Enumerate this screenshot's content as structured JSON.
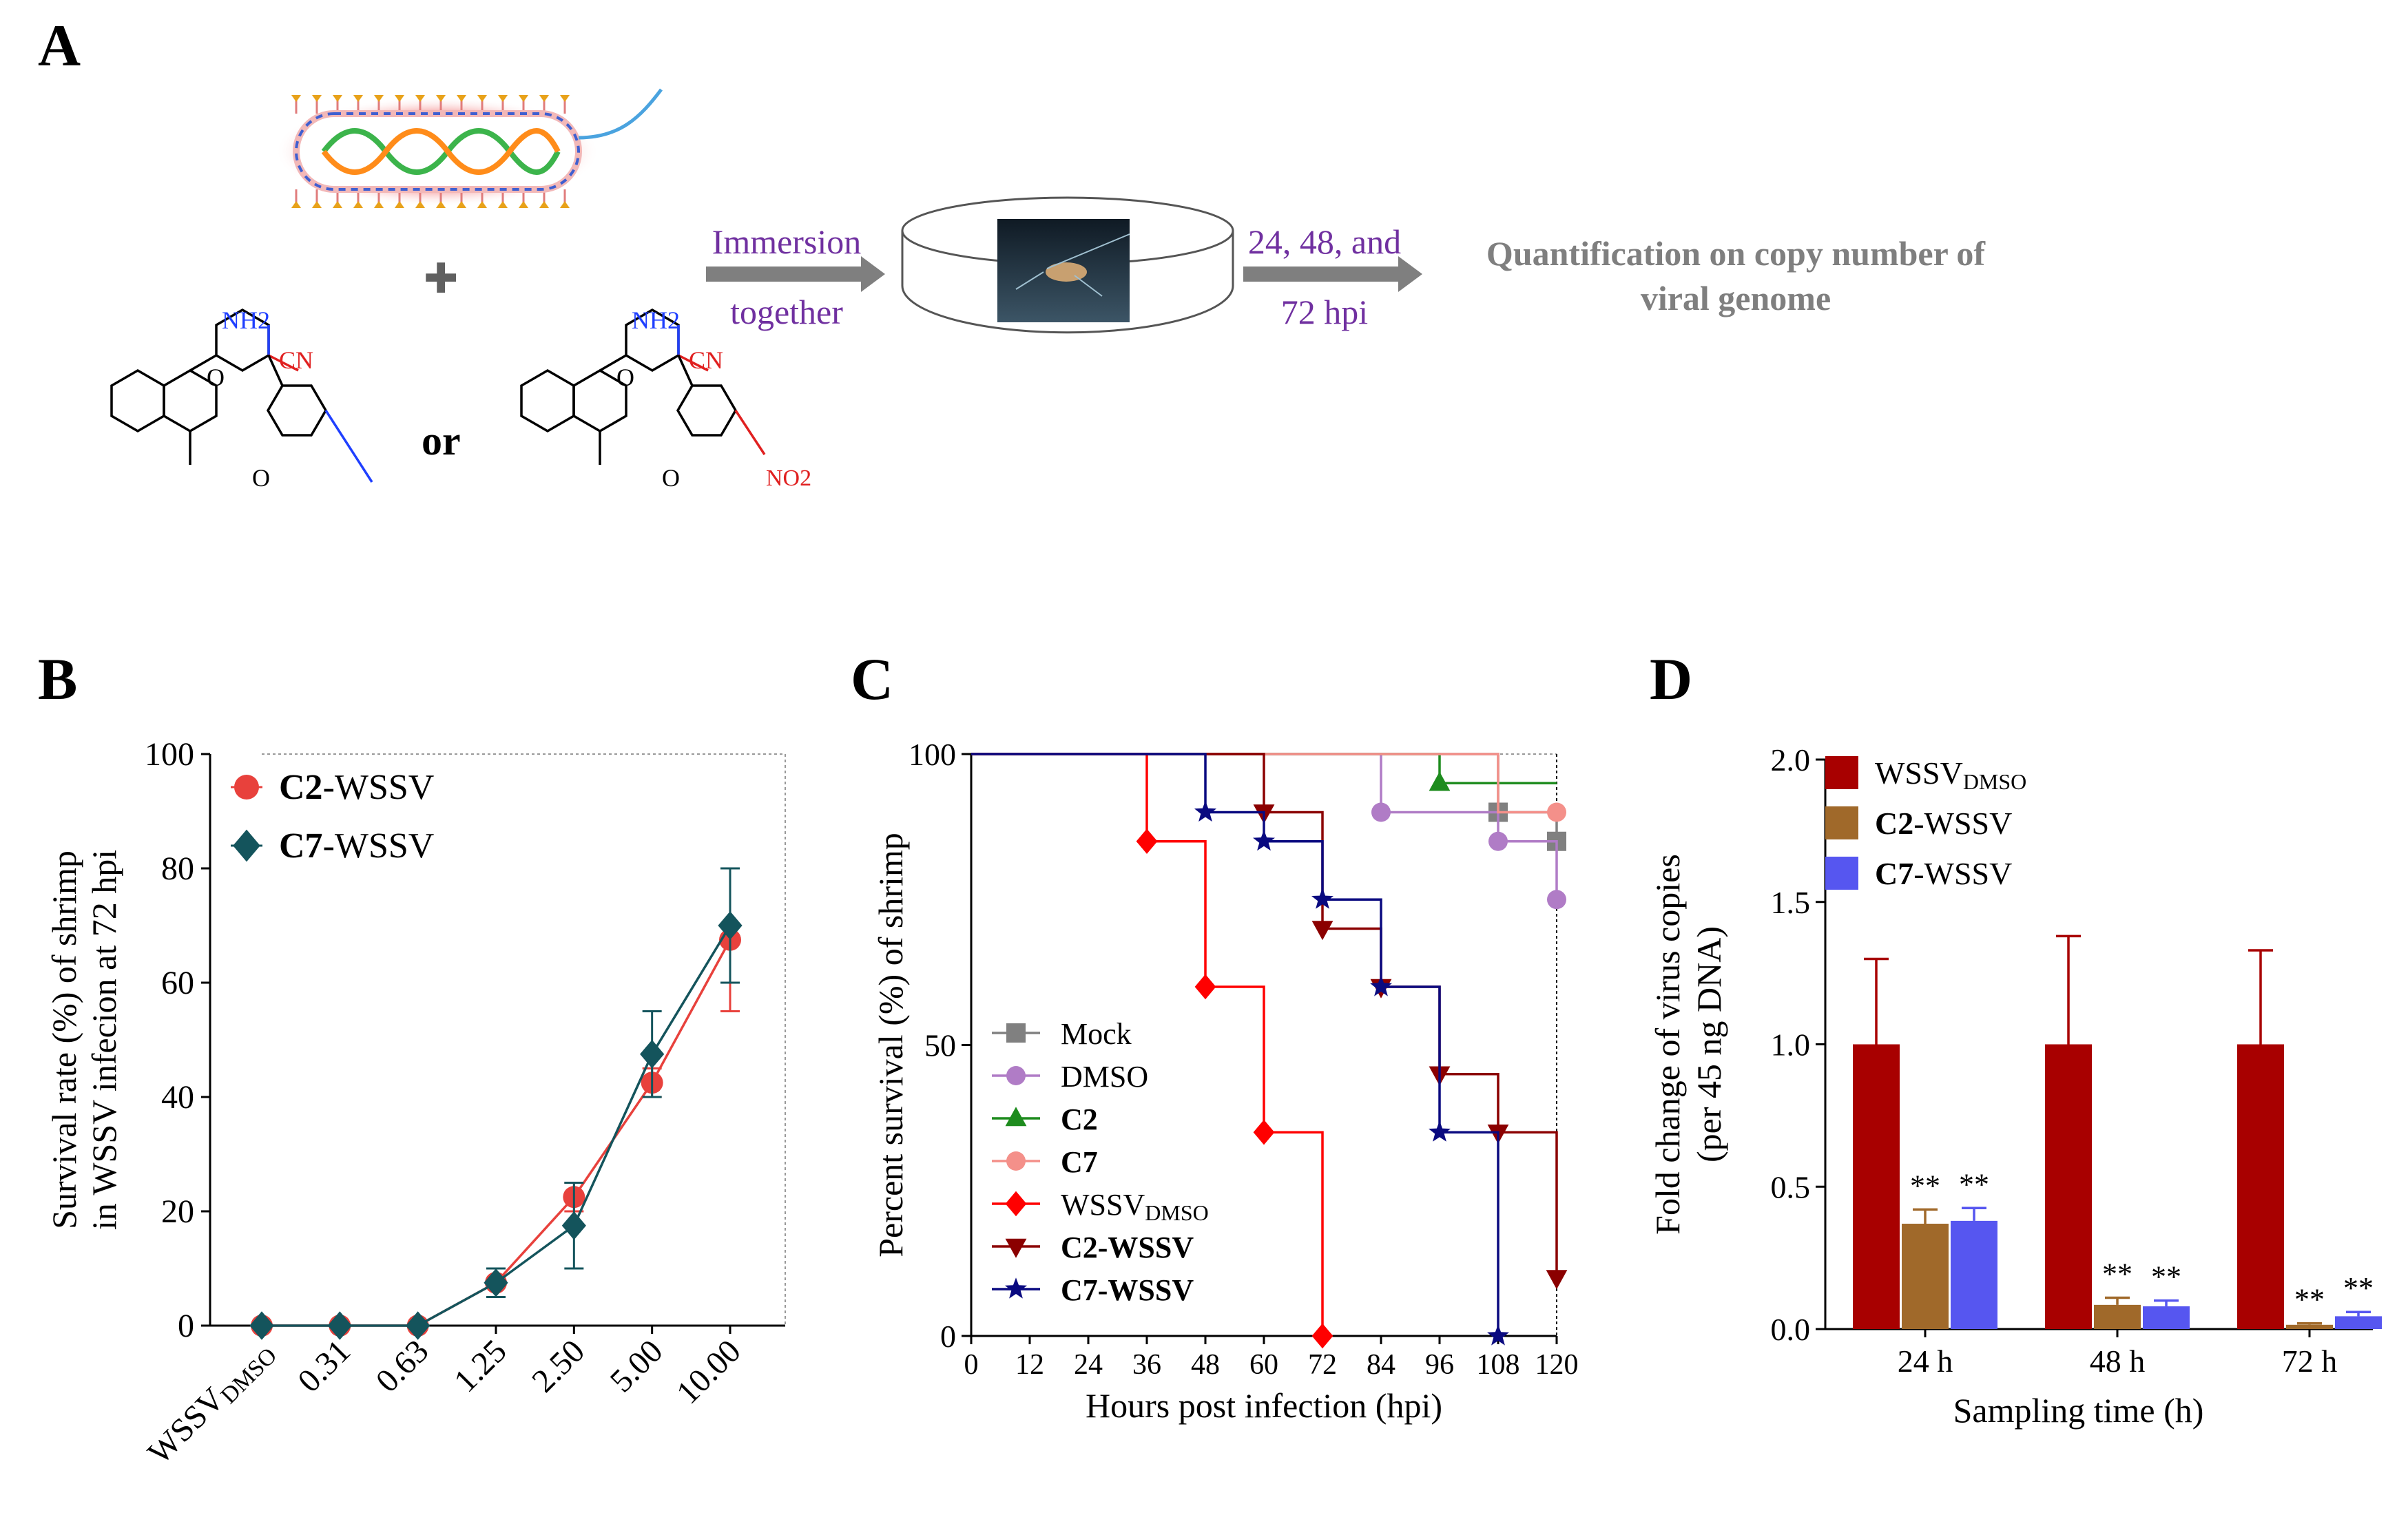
{
  "panel_a": {
    "letter": "A",
    "plus": "✚",
    "or_text": "or",
    "arrow1_top": "Immersion",
    "arrow1_bottom": "together",
    "arrow2_top": "24, 48, and",
    "arrow2_bottom": "72 hpi",
    "result_line1": "Quantification on copy number of",
    "result_line2": "viral genome",
    "molecule1": {
      "nh2": "NH2",
      "cn": "CN",
      "o": "O",
      "carbonyl": "O"
    },
    "molecule2": {
      "nh2": "NH2",
      "cn": "CN",
      "o": "O",
      "carbonyl": "O",
      "no2": "NO2"
    },
    "colors": {
      "purple": "#7030a0",
      "gray": "#7f7f7f",
      "amine": "#1f3fff",
      "nitrile": "#e02020",
      "helix_green": "#3cb44b",
      "helix_orange": "#ff8c1a",
      "ring": "#f4b6b6"
    }
  },
  "chart_data": [
    {
      "panel": "B",
      "type": "line",
      "categories": [
        "WSSVDMSO",
        "0.31",
        "0.63",
        "1.25",
        "2.50",
        "5.00",
        "10.00"
      ],
      "category_sub": {
        "index": 0,
        "main": "WSSV",
        "sub": "DMSO"
      },
      "ylabel_line1": "Survival rate (%) of shrimp",
      "ylabel_line2": "in WSSV infecion at 72 hpi",
      "ylim": [
        0,
        100
      ],
      "yticks": [
        0,
        20,
        40,
        60,
        80,
        100
      ],
      "series": [
        {
          "name_bold": "C2",
          "name_rest": "-WSSV",
          "color": "#e8413c",
          "marker": "circle",
          "values": [
            0,
            0,
            0,
            7.5,
            22.5,
            42.5,
            67.5
          ],
          "errors": [
            0,
            0,
            0,
            2.5,
            2.5,
            2.5,
            12.5
          ]
        },
        {
          "name_bold": "C7",
          "name_rest": "-WSSV",
          "color": "#14545c",
          "marker": "diamond",
          "values": [
            0,
            0,
            0,
            7.5,
            17.5,
            47.5,
            70.0
          ],
          "errors": [
            0,
            0,
            0,
            2.5,
            7.5,
            7.5,
            10.0
          ]
        }
      ]
    },
    {
      "panel": "C",
      "type": "line",
      "subtype": "survival-step",
      "xlabel": "Hours post infection (hpi)",
      "ylabel": "Percent survival (%) of shrimp",
      "xlim": [
        0,
        120
      ],
      "ylim": [
        0,
        100
      ],
      "xticks": [
        0,
        12,
        24,
        36,
        48,
        60,
        72,
        84,
        96,
        108,
        120
      ],
      "yticks": [
        0,
        50,
        100
      ],
      "series": [
        {
          "name": "Mock",
          "bold": false,
          "color": "#808080",
          "marker": "square",
          "steps": [
            [
              0,
              100
            ],
            [
              108,
              90
            ],
            [
              120,
              85
            ]
          ],
          "marks": [
            [
              108,
              90
            ],
            [
              120,
              85
            ]
          ]
        },
        {
          "name": "DMSO",
          "bold": false,
          "color": "#b07cc6",
          "marker": "circle",
          "steps": [
            [
              0,
              100
            ],
            [
              84,
              90
            ],
            [
              108,
              85
            ],
            [
              120,
              75
            ]
          ],
          "marks": [
            [
              84,
              90
            ],
            [
              108,
              85
            ],
            [
              120,
              75
            ]
          ]
        },
        {
          "name": "C2",
          "bold": true,
          "color": "#1e8c1e",
          "marker": "triangle",
          "steps": [
            [
              0,
              100
            ],
            [
              96,
              95
            ],
            [
              120,
              95
            ]
          ],
          "marks": [
            [
              96,
              95
            ]
          ]
        },
        {
          "name": "C7",
          "bold": true,
          "color": "#f4908a",
          "marker": "circle",
          "steps": [
            [
              0,
              100
            ],
            [
              108,
              90
            ],
            [
              120,
              90
            ]
          ],
          "marks": [
            [
              120,
              90
            ]
          ]
        },
        {
          "name": "WSSV",
          "sub": "DMSO",
          "bold": false,
          "color": "#ff0000",
          "marker": "diamond",
          "steps": [
            [
              0,
              100
            ],
            [
              36,
              85
            ],
            [
              48,
              60
            ],
            [
              60,
              35
            ],
            [
              72,
              0
            ]
          ],
          "marks": [
            [
              36,
              85
            ],
            [
              48,
              60
            ],
            [
              60,
              35
            ],
            [
              72,
              0
            ]
          ]
        },
        {
          "name": "C2-WSSV",
          "bold": true,
          "color": "#8b0000",
          "marker": "triangle-down",
          "steps": [
            [
              0,
              100
            ],
            [
              60,
              90
            ],
            [
              72,
              70
            ],
            [
              84,
              60
            ],
            [
              96,
              45
            ],
            [
              108,
              35
            ],
            [
              120,
              10
            ]
          ],
          "marks": [
            [
              60,
              90
            ],
            [
              72,
              70
            ],
            [
              84,
              60
            ],
            [
              96,
              45
            ],
            [
              108,
              35
            ],
            [
              120,
              10
            ]
          ]
        },
        {
          "name": "C7-WSSV",
          "bold": true,
          "color": "#0a0a80",
          "marker": "star",
          "steps": [
            [
              0,
              100
            ],
            [
              48,
              90
            ],
            [
              60,
              85
            ],
            [
              72,
              75
            ],
            [
              84,
              60
            ],
            [
              96,
              35
            ],
            [
              108,
              0
            ]
          ],
          "marks": [
            [
              48,
              90
            ],
            [
              60,
              85
            ],
            [
              72,
              75
            ],
            [
              84,
              60
            ],
            [
              96,
              35
            ],
            [
              108,
              0
            ]
          ]
        }
      ]
    },
    {
      "panel": "D",
      "type": "bar",
      "categories": [
        "24 h",
        "48 h",
        "72 h"
      ],
      "xlabel": "Sampling time (h)",
      "ylabel_line1": "Fold change of virus copies",
      "ylabel_line2": "(per 45 ng DNA)",
      "ylim": [
        0,
        2.0
      ],
      "yticks": [
        "0.0",
        "0.5",
        "1.0",
        "1.5",
        "2.0"
      ],
      "significance": "**",
      "series": [
        {
          "name": "WSSV",
          "sub": "DMSO",
          "bold": false,
          "color": "#a80000",
          "values": [
            1.0,
            1.0,
            1.0
          ],
          "errors": [
            0.3,
            0.38,
            0.33
          ],
          "sig": [
            false,
            false,
            false
          ]
        },
        {
          "name_bold": "C2",
          "name_rest": "-WSSV",
          "color": "#a0692a",
          "values": [
            0.37,
            0.085,
            0.015
          ],
          "errors": [
            0.05,
            0.025,
            0.005
          ],
          "sig": [
            true,
            true,
            true
          ]
        },
        {
          "name_bold": "C7",
          "name_rest": "-WSSV",
          "color": "#5656f0",
          "values": [
            0.38,
            0.08,
            0.045
          ],
          "errors": [
            0.045,
            0.02,
            0.015
          ],
          "sig": [
            true,
            true,
            true
          ]
        }
      ]
    }
  ],
  "panel_labels": {
    "b": "B",
    "c": "C",
    "d": "D"
  }
}
